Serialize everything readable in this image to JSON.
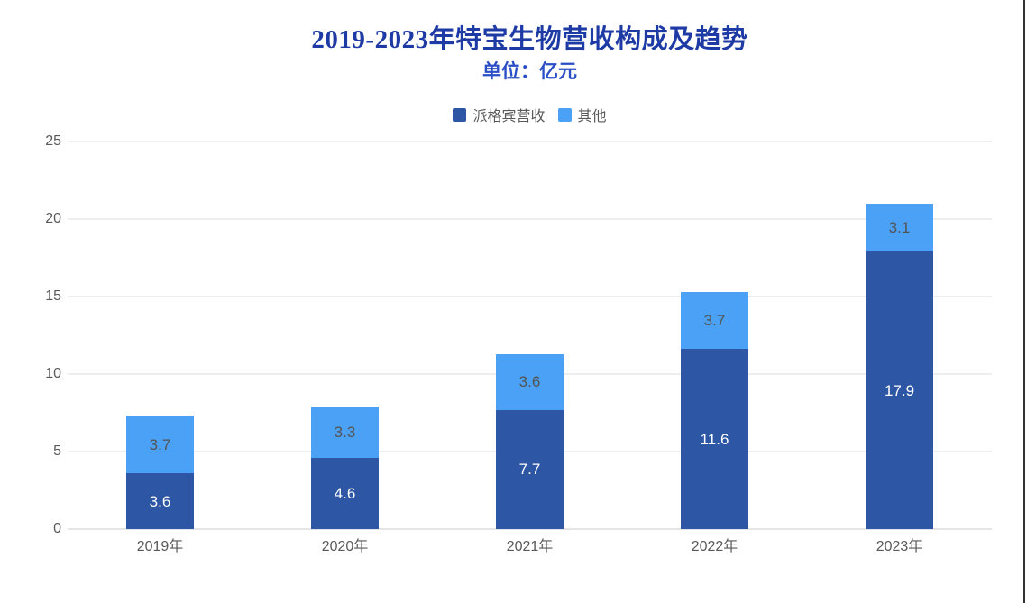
{
  "header": {
    "title": "2019-2023年特宝生物营收构成及趋势",
    "subtitle": "单位：亿元",
    "title_color": "#1e3aa5",
    "subtitle_color": "#2a4ec5"
  },
  "chart_data": {
    "type": "bar",
    "stacked": true,
    "title": "2019-2023年特宝生物营收构成及趋势",
    "subtitle": "单位：亿元",
    "categories": [
      "2019年",
      "2020年",
      "2021年",
      "2022年",
      "2023年"
    ],
    "series": [
      {
        "name": "派格宾营收",
        "color": "#2d56a4",
        "label_color": "#ffffff",
        "values": [
          3.6,
          4.6,
          7.7,
          11.6,
          17.9
        ]
      },
      {
        "name": "其他",
        "color": "#4aa1f5",
        "label_color": "#545454",
        "values": [
          3.7,
          3.3,
          3.6,
          3.7,
          3.1
        ]
      }
    ],
    "ylim": [
      0,
      25
    ],
    "yticks": [
      0,
      5,
      10,
      15,
      20,
      25
    ],
    "grid": true,
    "legend_position": "top",
    "axis_text_color": "#595959",
    "gridline_color": "#eceef0",
    "data_labels": true
  },
  "frame": {
    "right_border_color": "#333333"
  }
}
